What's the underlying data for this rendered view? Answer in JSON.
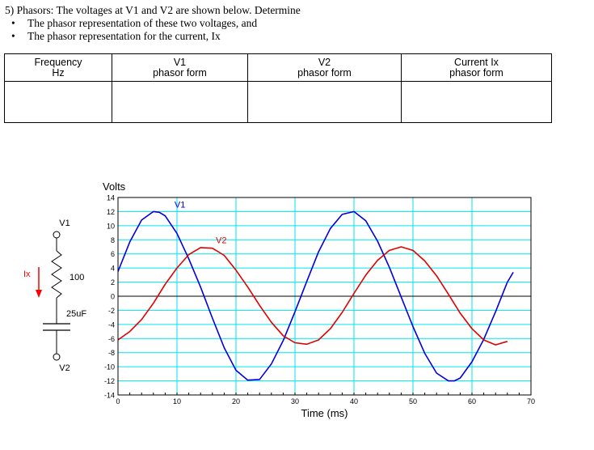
{
  "problem": {
    "question": "5)  Phasors:  The voltages at V1 and V2 are shown below.  Determine",
    "bullets": [
      "The phasor representation of these two voltages, and",
      "The phasor representation for the current, Ix"
    ]
  },
  "answer_table": {
    "columns": [
      {
        "line1": "Frequency",
        "line2": "Hz"
      },
      {
        "line1": "V1",
        "line2": "phasor form"
      },
      {
        "line1": "V2",
        "line2": "phasor form"
      },
      {
        "line1": "Current Ix",
        "line2": "phasor form"
      }
    ]
  },
  "circuit": {
    "node_top": "V1",
    "node_bottom": "V2",
    "current_label": "Ix",
    "resistor_label": "100",
    "capacitor_label": "25uF",
    "colors": {
      "current": "#ff0000",
      "wire": "#000000"
    }
  },
  "chart_data": {
    "type": "line",
    "ylabel": "Volts",
    "xlabel": "Time (ms)",
    "xlim": [
      0,
      70
    ],
    "ylim": [
      -14,
      14
    ],
    "x_ticks": [
      0,
      10,
      20,
      30,
      40,
      50,
      60,
      70
    ],
    "y_ticks": [
      14,
      12,
      10,
      8,
      6,
      4,
      2,
      0,
      -2,
      -4,
      -6,
      -8,
      -10,
      -12,
      -14
    ],
    "grid": true,
    "grid_color": "#00e5ee",
    "zero_line": true,
    "series": [
      {
        "name": "V1",
        "color": "#0000e0",
        "x": [
          0,
          2,
          4,
          6,
          7,
          8,
          10,
          12,
          14,
          16,
          18,
          20,
          22,
          24,
          26,
          28,
          30,
          32,
          34,
          36,
          38,
          40,
          42,
          44,
          46,
          48,
          50,
          52,
          54,
          56,
          57,
          58,
          60,
          62,
          64,
          66,
          67
        ],
        "y": [
          3.5,
          7.7,
          10.8,
          12.0,
          11.9,
          11.4,
          8.9,
          5.3,
          1.3,
          -3.1,
          -7.3,
          -10.5,
          -11.9,
          -11.8,
          -9.6,
          -6.3,
          -2.2,
          2.1,
          6.3,
          9.6,
          11.6,
          12.0,
          10.7,
          7.8,
          4.1,
          -0.1,
          -4.3,
          -8.1,
          -10.9,
          -12.0,
          -12.0,
          -11.6,
          -9.3,
          -6.1,
          -2.2,
          2.0,
          3.4
        ]
      },
      {
        "name": "V2",
        "color": "#e00000",
        "x": [
          0,
          2,
          4,
          6,
          8,
          10,
          12,
          14,
          16,
          18,
          20,
          22,
          24,
          26,
          28,
          30,
          32,
          34,
          36,
          38,
          40,
          42,
          44,
          46,
          48,
          50,
          52,
          54,
          56,
          58,
          60,
          62,
          64,
          66
        ],
        "y": [
          -6.2,
          -5.0,
          -3.3,
          -1.0,
          1.7,
          4.0,
          5.9,
          6.9,
          6.8,
          5.8,
          3.7,
          1.3,
          -1.3,
          -3.7,
          -5.6,
          -6.6,
          -6.8,
          -6.2,
          -4.6,
          -2.3,
          0.4,
          3.0,
          5.1,
          6.5,
          7.0,
          6.5,
          5.0,
          2.9,
          0.3,
          -2.4,
          -4.6,
          -6.2,
          -6.9,
          -6.4
        ]
      }
    ]
  }
}
